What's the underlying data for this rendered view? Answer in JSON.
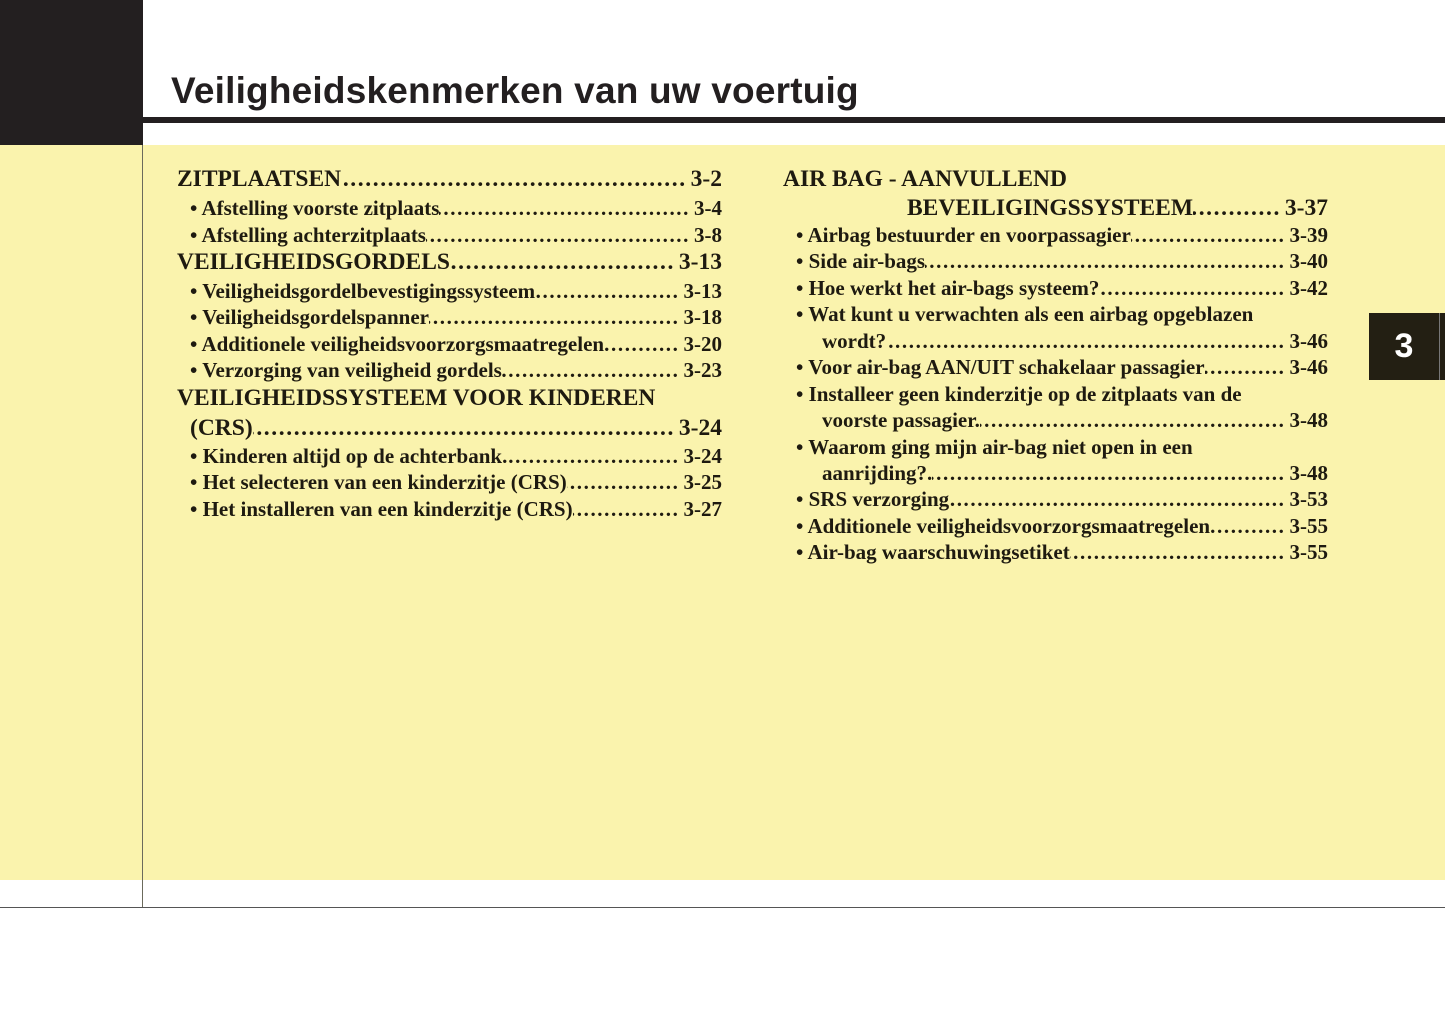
{
  "header": {
    "title": "Veiligheidskenmerken van uw voertuig"
  },
  "chapter_tab": "3",
  "colors": {
    "background": "#faf3ad",
    "dark": "#231f20"
  },
  "toc": {
    "left": [
      {
        "label": "ZITPLAATSEN",
        "page": "3-2",
        "heading": true
      },
      {
        "label": "• Afstelling voorste zitplaats",
        "page": "3-4"
      },
      {
        "label": "• Afstelling achterzitplaats",
        "page": "3-8"
      },
      {
        "label": "VEILIGHEIDSGORDELS",
        "page": "3-13",
        "heading": true
      },
      {
        "label": "• Veiligheidsgordelbevestigingssysteem",
        "page": "3-13"
      },
      {
        "label": "• Veiligheidsgordelspanner",
        "page": "3-18"
      },
      {
        "label": "• Additionele veiligheidsvoorzorgsmaatregelen",
        "page": "3-20"
      },
      {
        "label": "• Verzorging van veiligheid gordels",
        "page": "3-23"
      },
      {
        "label": "VEILIGHEIDSSYSTEEM VOOR KINDEREN",
        "page": "",
        "heading": true
      },
      {
        "label": "(CRS)",
        "page": "3-24",
        "heading": true,
        "cont": true
      },
      {
        "label": "• Kinderen altijd op de achterbank.",
        "page": "3-24"
      },
      {
        "label": "• Het selecteren van een kinderzitje (CRS)",
        "page": "3-25"
      },
      {
        "label": "• Het installeren van een kinderzitje (CRS)",
        "page": "3-27"
      }
    ],
    "right": [
      {
        "label": "AIR BAG - AANVULLEND",
        "page": "",
        "heading": true
      },
      {
        "label": "BEVEILIGINGSSYSTEEM",
        "page": "3-37",
        "heading": true,
        "cont": true
      },
      {
        "label": "• Airbag bestuurder en voorpassagier",
        "page": "3-39"
      },
      {
        "label": "• Side air-bags",
        "page": "3-40"
      },
      {
        "label": "• Hoe werkt het air-bags systeem?",
        "page": "3-42"
      },
      {
        "label": "• Wat kunt u verwachten als een airbag opgeblazen",
        "page": ""
      },
      {
        "label": "wordt?",
        "page": "3-46",
        "cont": true
      },
      {
        "label": "• Voor air-bag AAN/UIT schakelaar passagier",
        "page": "3-46"
      },
      {
        "label": "• Installeer geen kinderzitje op de zitplaats van de",
        "page": ""
      },
      {
        "label": "voorste passagier.",
        "page": "3-48",
        "cont": true
      },
      {
        "label": "• Waarom ging mijn air-bag niet open in een",
        "page": ""
      },
      {
        "label": "aanrijding?.",
        "page": "3-48",
        "cont": true
      },
      {
        "label": "• SRS verzorging",
        "page": "3-53"
      },
      {
        "label": "• Additionele veiligheidsvoorzorgsmaatregelen",
        "page": "3-55"
      },
      {
        "label": "• Air-bag waarschuwingsetiket",
        "page": "3-55"
      }
    ]
  }
}
